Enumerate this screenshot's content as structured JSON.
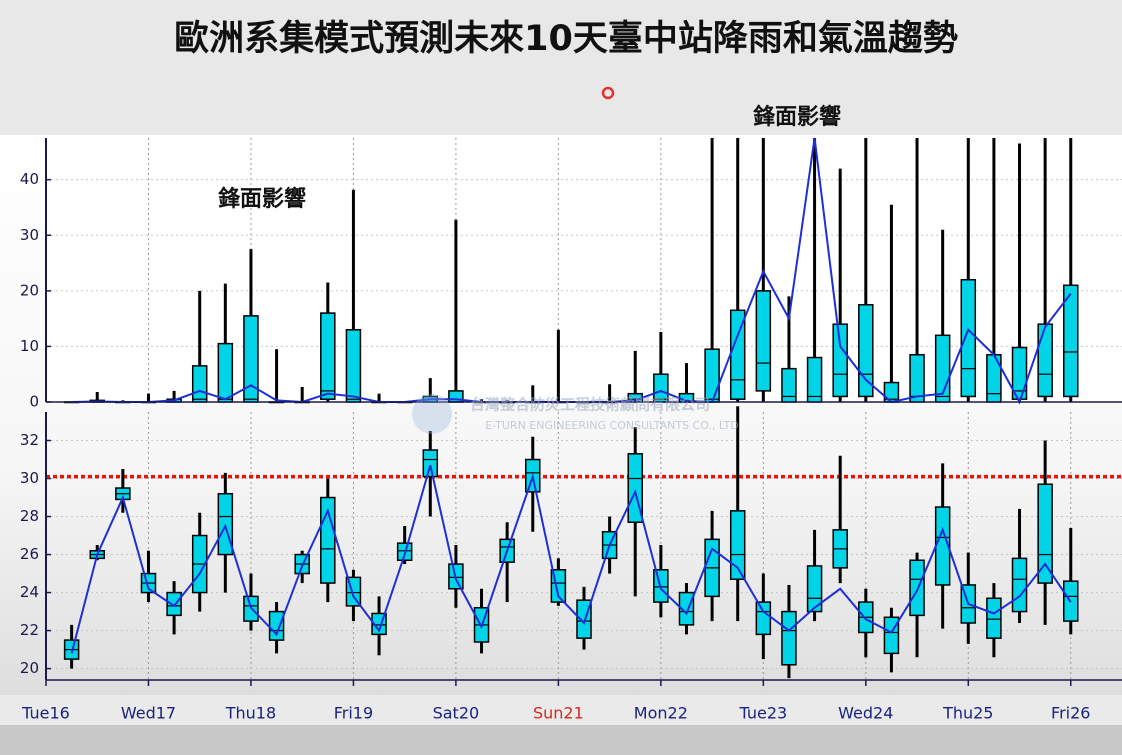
{
  "title": "歐洲系集模式預測未來10天臺中站降雨和氣溫趨勢",
  "watermark": [
    "台灣整合防災工程技術顧問有限公司",
    "E-TURN ENGINEERING CONSULTANTS CO., LTD"
  ],
  "chart_data": [
    {
      "type": "box",
      "annotation": "鋒面影響",
      "x": [
        0.25,
        0.5,
        0.75,
        1,
        1.25,
        1.5,
        1.75,
        2,
        2.25,
        2.5,
        2.75,
        3,
        3.25,
        3.5,
        3.75,
        4,
        4.25,
        4.5,
        4.75,
        5,
        5.25,
        5.5,
        5.75,
        6,
        6.25,
        6.5,
        6.75,
        7,
        7.25,
        7.5,
        7.75,
        8,
        8.25,
        8.5,
        8.75,
        9,
        9.25,
        9.5,
        9.75,
        10
      ],
      "xlim": [
        0,
        10.5
      ],
      "ylim": [
        0,
        47.5
      ],
      "yticks": [
        0,
        10,
        20,
        30,
        40
      ],
      "grid": true,
      "box_color": "#00d4e6",
      "boxes": {
        "low": [
          0,
          0,
          0,
          0,
          0,
          0,
          0,
          0,
          0,
          0,
          0,
          0,
          0,
          0,
          0,
          0,
          0,
          0,
          0,
          0,
          0,
          0,
          0,
          0,
          0,
          0,
          0,
          0,
          0,
          0,
          0,
          0,
          0,
          0,
          0,
          0,
          0,
          0,
          0,
          0
        ],
        "q1": [
          0,
          0,
          0,
          0,
          0,
          0,
          0,
          0,
          0,
          0,
          0.5,
          0,
          0,
          0,
          0,
          0,
          0,
          0,
          0,
          0,
          0,
          0,
          0,
          0,
          0,
          0,
          0.5,
          2,
          0,
          0,
          1,
          1,
          0,
          0,
          0,
          1,
          0,
          0.5,
          1,
          1
        ],
        "median": [
          0,
          0,
          0,
          0,
          0,
          0.5,
          0.5,
          0.5,
          0,
          0,
          2,
          0.5,
          0,
          0,
          0,
          0,
          0,
          0,
          0,
          0,
          0,
          0,
          0.5,
          0.5,
          0,
          0.5,
          4,
          7,
          1,
          1,
          5,
          5,
          0.5,
          1,
          1,
          6,
          1.5,
          2,
          5,
          9
        ],
        "q3": [
          0,
          0.3,
          0,
          0,
          0.5,
          6.5,
          10.5,
          15.5,
          0,
          0,
          16,
          13,
          0,
          0,
          1,
          2,
          0,
          0,
          0,
          0,
          0,
          0,
          1.5,
          5,
          1.5,
          9.5,
          16.5,
          20,
          6,
          8,
          14,
          17.5,
          3.5,
          8.5,
          12,
          22,
          8.5,
          9.8,
          14,
          21
        ],
        "high": [
          0,
          1.8,
          0.3,
          1.5,
          2,
          20,
          21.3,
          27.5,
          9.5,
          2.7,
          21.5,
          38.2,
          1.5,
          0,
          4.3,
          32.8,
          0.5,
          0.3,
          3,
          13,
          0,
          3.2,
          9.2,
          12.6,
          7,
          47.5,
          47.5,
          47.5,
          19,
          47.5,
          42,
          47.5,
          35.5,
          47.5,
          31,
          47.5,
          47.5,
          46.5,
          47.5,
          47.5
        ]
      },
      "mean": {
        "color": "#1f2fd6",
        "values": [
          0,
          0.1,
          0,
          0,
          0.3,
          2,
          0.5,
          3,
          0.3,
          0,
          1.5,
          1,
          0,
          0,
          0.5,
          0.5,
          0,
          0,
          0,
          0,
          0,
          0,
          0.3,
          2,
          0.2,
          0,
          12,
          23.5,
          15,
          47.5,
          10,
          4,
          0,
          1,
          1.5,
          13,
          8.5,
          0,
          13.5,
          19.5
        ]
      }
    },
    {
      "type": "box",
      "annotation": "鋒面影響",
      "x": [
        0.25,
        0.5,
        0.75,
        1,
        1.25,
        1.5,
        1.75,
        2,
        2.25,
        2.5,
        2.75,
        3,
        3.25,
        3.5,
        3.75,
        4,
        4.25,
        4.5,
        4.75,
        5,
        5.25,
        5.5,
        5.75,
        6,
        6.25,
        6.5,
        6.75,
        7,
        7.25,
        7.5,
        7.75,
        8,
        8.25,
        8.5,
        8.75,
        9,
        9.25,
        9.5,
        9.75,
        10
      ],
      "xlim": [
        0,
        10.5
      ],
      "xticks": [
        {
          "value": 0,
          "label": "Tue16"
        },
        {
          "value": 1,
          "label": "Wed17"
        },
        {
          "value": 2,
          "label": "Thu18"
        },
        {
          "value": 3,
          "label": "Fri19"
        },
        {
          "value": 4,
          "label": "Sat20"
        },
        {
          "value": 5,
          "label": "Sun21"
        },
        {
          "value": 6,
          "label": "Mon22"
        },
        {
          "value": 7,
          "label": "Tue23"
        },
        {
          "value": 8,
          "label": "Wed24"
        },
        {
          "value": 9,
          "label": "Thu25"
        },
        {
          "value": 10,
          "label": "Fri26"
        }
      ],
      "xtick_colors": [
        "#1a237e",
        "#1a237e",
        "#1a237e",
        "#1a237e",
        "#1a237e",
        "#d62a1e",
        "#1a237e",
        "#1a237e",
        "#1a237e",
        "#1a237e",
        "#1a237e"
      ],
      "ylim": [
        19.4,
        33.5
      ],
      "yticks": [
        20,
        22,
        24,
        26,
        28,
        30,
        32
      ],
      "grid": true,
      "box_color": "#00d4e6",
      "reference_line": {
        "value": 30.1,
        "color": "#e8140c"
      },
      "boxes": {
        "low": [
          20,
          25.7,
          28.2,
          23.5,
          21.8,
          23,
          24,
          22,
          20.8,
          24.5,
          23.5,
          22.5,
          20.7,
          25.5,
          28,
          23.2,
          20.8,
          23.5,
          27.2,
          23.3,
          21,
          25,
          23.8,
          22.7,
          21.8,
          22.5,
          22.5,
          20.5,
          19.5,
          22.5,
          24.5,
          20.6,
          19.8,
          20.6,
          22.1,
          21.3,
          20.6,
          22.4,
          22.3,
          21.8
        ],
        "q1": [
          20.5,
          25.8,
          28.9,
          24,
          22.8,
          24,
          26,
          22.5,
          21.5,
          25,
          24.5,
          23.3,
          21.8,
          25.7,
          30.1,
          24.2,
          21.4,
          25.6,
          29.3,
          23.5,
          21.6,
          25.8,
          27.7,
          23.5,
          22.3,
          23.8,
          24.7,
          21.8,
          20.2,
          23,
          25.3,
          21.9,
          20.8,
          22.8,
          24.4,
          22.4,
          21.6,
          23,
          24.5,
          22.5
        ],
        "median": [
          21,
          26,
          29.2,
          24.5,
          23.3,
          25.5,
          28,
          23.3,
          22,
          25.5,
          26.3,
          24,
          22.3,
          26.2,
          31,
          24.8,
          22.3,
          26.4,
          30.3,
          24.5,
          22.5,
          26.5,
          30,
          24.3,
          23,
          25.3,
          26,
          23,
          22,
          23.7,
          26.3,
          22.7,
          21.9,
          24.7,
          26.9,
          23.2,
          22.6,
          24.7,
          26,
          23.8
        ],
        "q3": [
          21.5,
          26.2,
          29.5,
          25,
          24,
          27,
          29.2,
          23.8,
          23,
          26,
          29,
          24.8,
          22.9,
          26.6,
          31.5,
          25.5,
          23.2,
          26.8,
          31,
          25.2,
          23.6,
          27.2,
          31.3,
          25.2,
          24,
          26.8,
          28.3,
          23.5,
          23,
          25.4,
          27.3,
          23.5,
          22.7,
          25.7,
          28.5,
          24.4,
          23.7,
          25.8,
          29.7,
          24.6
        ],
        "high": [
          22.3,
          26.5,
          30.5,
          26.2,
          24.6,
          28.2,
          30.3,
          25,
          23.5,
          26.2,
          30,
          25.2,
          23.8,
          27.5,
          32.5,
          26.5,
          24.2,
          27.7,
          32.2,
          25.8,
          24.3,
          28,
          32.7,
          26.5,
          24.5,
          28.3,
          33.8,
          25,
          24.4,
          27.3,
          31.2,
          24.2,
          23.2,
          26.1,
          30.8,
          26.1,
          24.5,
          28.4,
          32,
          27.4
        ]
      },
      "mean": {
        "color": "#1f2fd6",
        "values": [
          20.8,
          26,
          29,
          24.2,
          23.3,
          25,
          27.5,
          23.2,
          21.8,
          25.4,
          28.3,
          23.8,
          22,
          26,
          30.7,
          24.7,
          22.2,
          26.2,
          30.1,
          23.8,
          22.4,
          26.5,
          29.3,
          24.2,
          22.9,
          26.3,
          25.3,
          23,
          22,
          23.2,
          24.2,
          22.6,
          21.9,
          24.1,
          27.3,
          23.4,
          22.9,
          23.8,
          25.5,
          23.5
        ]
      }
    }
  ]
}
